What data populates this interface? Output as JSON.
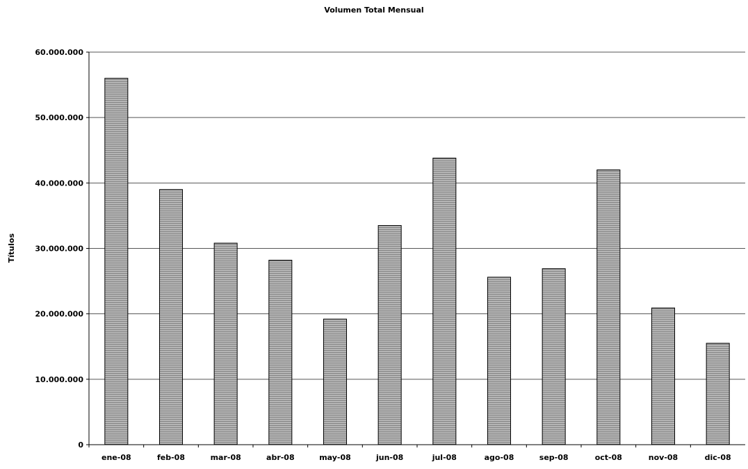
{
  "chart_data": {
    "type": "bar",
    "title": "Volumen Total Mensual",
    "xlabel": "",
    "ylabel": "Títulos",
    "categories": [
      "ene-08",
      "feb-08",
      "mar-08",
      "abr-08",
      "may-08",
      "jun-08",
      "jul-08",
      "ago-08",
      "sep-08",
      "oct-08",
      "nov-08",
      "dic-08"
    ],
    "values": [
      56000000,
      39000000,
      30800000,
      28200000,
      19200000,
      33500000,
      43800000,
      25600000,
      26900000,
      42000000,
      20900000,
      15500000
    ],
    "ylim": [
      0,
      60000000
    ],
    "yticks": [
      "0",
      "10.000.000",
      "20.000.000",
      "30.000.000",
      "40.000.000",
      "50.000.000",
      "60.000.000"
    ],
    "grid": true,
    "legend": "none",
    "bar_color": "#8c8c8c"
  }
}
